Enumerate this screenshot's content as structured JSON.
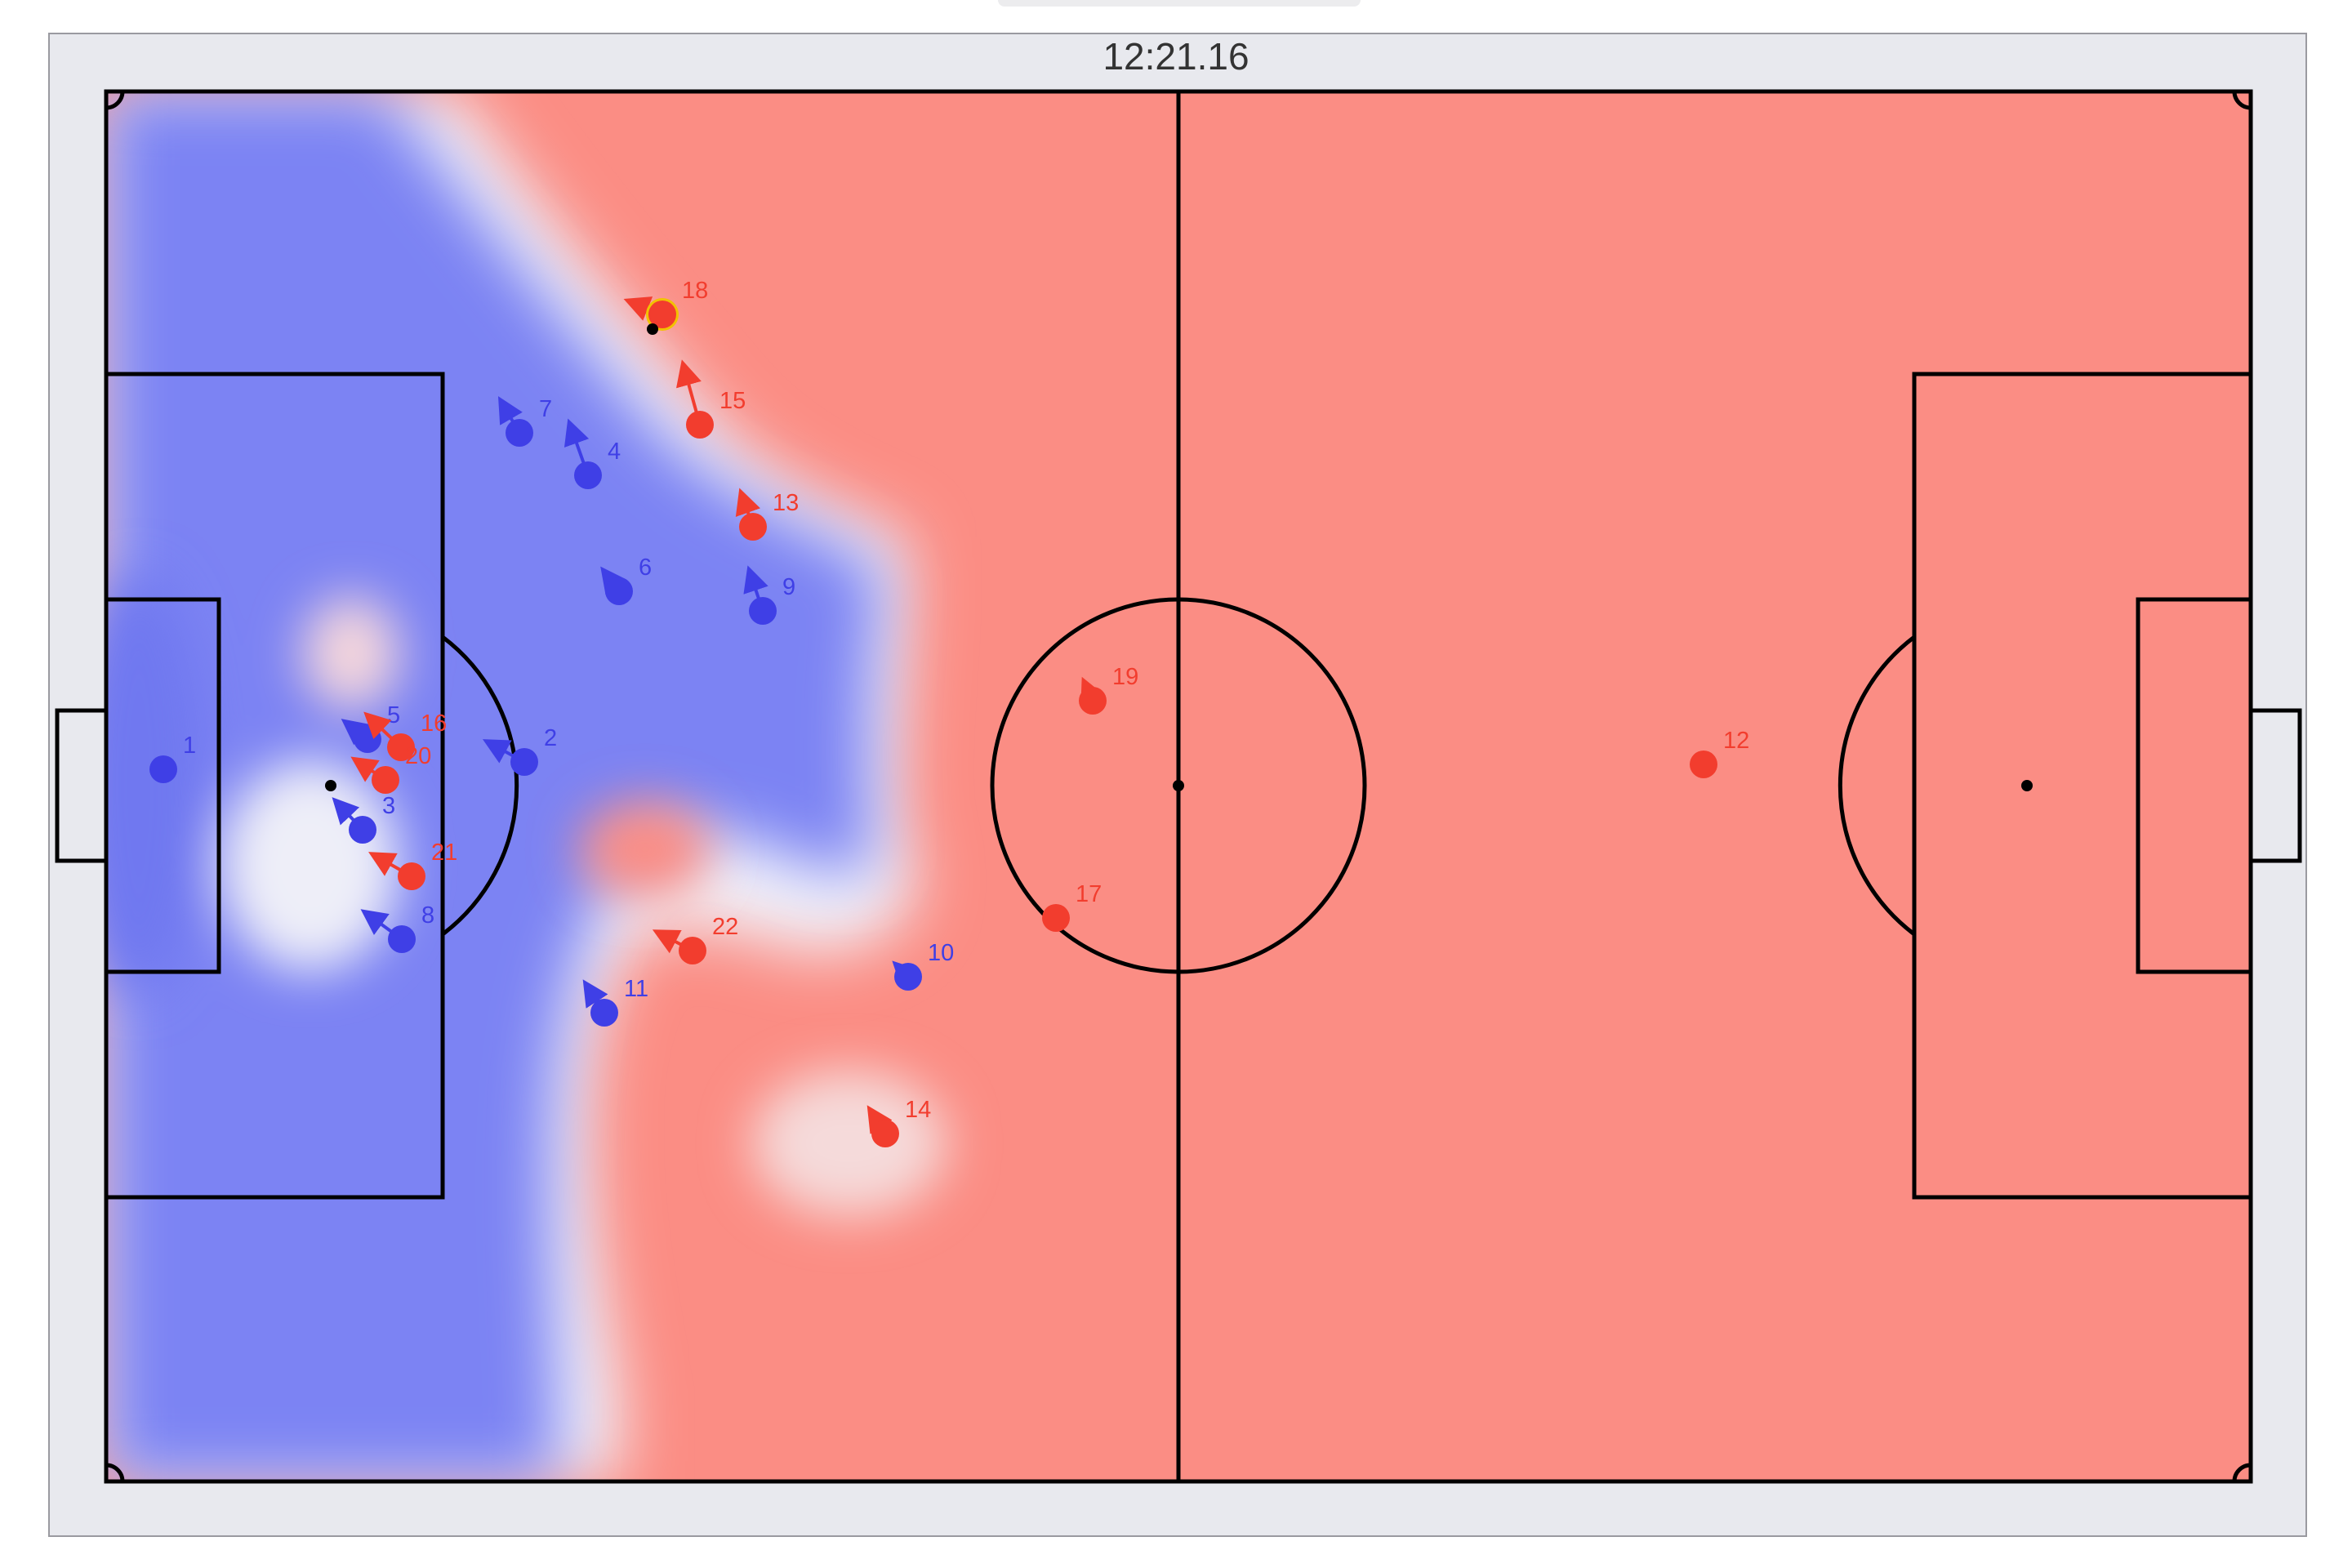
{
  "clock": "12:21.16",
  "colors": {
    "home": "#3f3fe6",
    "away": "#f23d2e",
    "control_home": "#7c83f3",
    "control_away": "#fb8d84",
    "ball_highlight": "#f2c200",
    "lines": "#000000",
    "frame_bg": "#e8e9ee"
  },
  "players": [
    {
      "team": "home",
      "number": "1"
    },
    {
      "team": "home",
      "number": "2"
    },
    {
      "team": "home",
      "number": "3"
    },
    {
      "team": "home",
      "number": "4"
    },
    {
      "team": "home",
      "number": "5"
    },
    {
      "team": "home",
      "number": "6"
    },
    {
      "team": "home",
      "number": "7"
    },
    {
      "team": "home",
      "number": "8"
    },
    {
      "team": "home",
      "number": "9"
    },
    {
      "team": "home",
      "number": "10"
    },
    {
      "team": "home",
      "number": "11"
    },
    {
      "team": "away",
      "number": "12"
    },
    {
      "team": "away",
      "number": "13"
    },
    {
      "team": "away",
      "number": "14"
    },
    {
      "team": "away",
      "number": "15"
    },
    {
      "team": "away",
      "number": "16"
    },
    {
      "team": "away",
      "number": "17"
    },
    {
      "team": "away",
      "number": "18",
      "has_ball": true
    },
    {
      "team": "away",
      "number": "19"
    },
    {
      "team": "away",
      "number": "20"
    },
    {
      "team": "away",
      "number": "21"
    },
    {
      "team": "away",
      "number": "22"
    }
  ]
}
